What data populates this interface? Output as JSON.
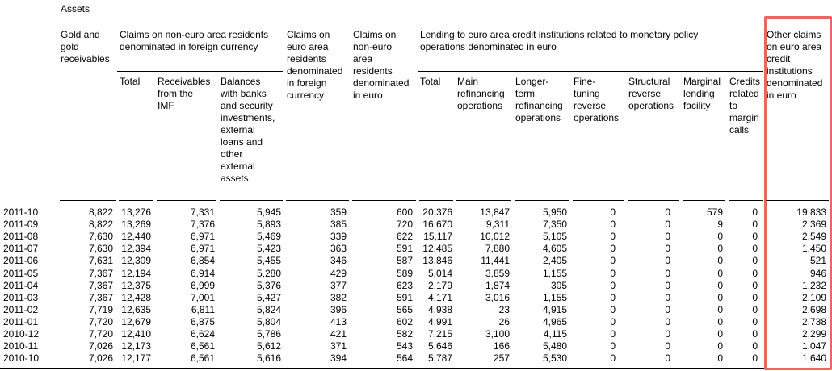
{
  "header": {
    "title": "Assets"
  },
  "table": {
    "groups": [
      {
        "label": [
          "Claims on non-euro area residents",
          "denominated in foreign currency"
        ],
        "columns": [
          1,
          3
        ]
      },
      {
        "label": [
          "Lending to euro area credit institutions related to monetary policy",
          "operations denominated in euro"
        ],
        "columns": [
          6,
          12
        ]
      }
    ],
    "columns": [
      [
        "Gold and",
        "gold",
        "receivables"
      ],
      [
        "Total"
      ],
      [
        "Receivables",
        "from the",
        "IMF"
      ],
      [
        "Balances",
        "with banks",
        "and security",
        "investments,",
        "external",
        "loans and",
        "other",
        "external",
        "assets"
      ],
      [
        "Claims on",
        "euro area",
        "residents",
        "denominated",
        "in foreign",
        "currency"
      ],
      [
        "Claims on",
        "non-euro",
        "area",
        "residents",
        "denominated",
        "in euro"
      ],
      [
        "Total"
      ],
      [
        "Main",
        "refinancing",
        "operations"
      ],
      [
        "Longer-",
        "term",
        "refinancing",
        "operations"
      ],
      [
        "Fine-",
        "tuning",
        "reverse",
        "operations"
      ],
      [
        "Structural",
        "reverse",
        "operations"
      ],
      [
        "Marginal",
        "lending",
        "facility"
      ],
      [
        "Credits",
        "related",
        "to",
        "margin",
        "calls"
      ],
      [
        "Other claims",
        "on euro area",
        "credit",
        "institutions",
        "denominated",
        "in euro"
      ]
    ],
    "rows": [
      {
        "date": "2011-10",
        "cells": [
          "8,822",
          "13,276",
          "7,331",
          "5,945",
          "359",
          "600",
          "20,376",
          "13,847",
          "5,950",
          "0",
          "0",
          "579",
          "0",
          "19,833"
        ]
      },
      {
        "date": "2011-09",
        "cells": [
          "8,822",
          "13,269",
          "7,376",
          "5,893",
          "385",
          "720",
          "16,670",
          "9,311",
          "7,350",
          "0",
          "0",
          "9",
          "0",
          "2,369"
        ]
      },
      {
        "date": "2011-08",
        "cells": [
          "7,630",
          "12,440",
          "6,971",
          "5,469",
          "339",
          "622",
          "15,117",
          "10,012",
          "5,105",
          "0",
          "0",
          "0",
          "0",
          "2,549"
        ]
      },
      {
        "date": "2011-07",
        "cells": [
          "7,630",
          "12,394",
          "6,971",
          "5,423",
          "363",
          "591",
          "12,485",
          "7,880",
          "4,605",
          "0",
          "0",
          "0",
          "0",
          "1,450"
        ]
      },
      {
        "date": "2011-06",
        "cells": [
          "7,631",
          "12,309",
          "6,854",
          "5,455",
          "346",
          "587",
          "13,846",
          "11,441",
          "2,405",
          "0",
          "0",
          "0",
          "0",
          "521"
        ]
      },
      {
        "date": "2011-05",
        "cells": [
          "7,367",
          "12,194",
          "6,914",
          "5,280",
          "429",
          "589",
          "5,014",
          "3,859",
          "1,155",
          "0",
          "0",
          "0",
          "0",
          "946"
        ]
      },
      {
        "date": "2011-04",
        "cells": [
          "7,367",
          "12,375",
          "6,999",
          "5,376",
          "377",
          "623",
          "2,179",
          "1,874",
          "305",
          "0",
          "0",
          "0",
          "0",
          "1,232"
        ]
      },
      {
        "date": "2011-03",
        "cells": [
          "7,367",
          "12,428",
          "7,001",
          "5,427",
          "382",
          "591",
          "4,171",
          "3,016",
          "1,155",
          "0",
          "0",
          "0",
          "0",
          "2,109"
        ]
      },
      {
        "date": "2011-02",
        "cells": [
          "7,719",
          "12,635",
          "6,811",
          "5,824",
          "396",
          "565",
          "4,938",
          "23",
          "4,915",
          "0",
          "0",
          "0",
          "0",
          "2,698"
        ]
      },
      {
        "date": "2011-01",
        "cells": [
          "7,720",
          "12,679",
          "6,875",
          "5,804",
          "413",
          "602",
          "4,991",
          "26",
          "4,965",
          "0",
          "0",
          "0",
          "0",
          "2,738"
        ]
      },
      {
        "date": "2010-12",
        "cells": [
          "7,720",
          "12,410",
          "6,624",
          "5,786",
          "421",
          "582",
          "7,215",
          "3,100",
          "4,115",
          "0",
          "0",
          "0",
          "0",
          "2,299"
        ]
      },
      {
        "date": "2010-11",
        "cells": [
          "7,026",
          "12,173",
          "6,561",
          "5,612",
          "371",
          "543",
          "5,646",
          "166",
          "5,480",
          "0",
          "0",
          "0",
          "0",
          "1,047"
        ]
      },
      {
        "date": "2010-10",
        "cells": [
          "7,026",
          "12,177",
          "6,561",
          "5,616",
          "394",
          "564",
          "5,787",
          "257",
          "5,530",
          "0",
          "0",
          "0",
          "0",
          "1,640"
        ]
      }
    ]
  }
}
